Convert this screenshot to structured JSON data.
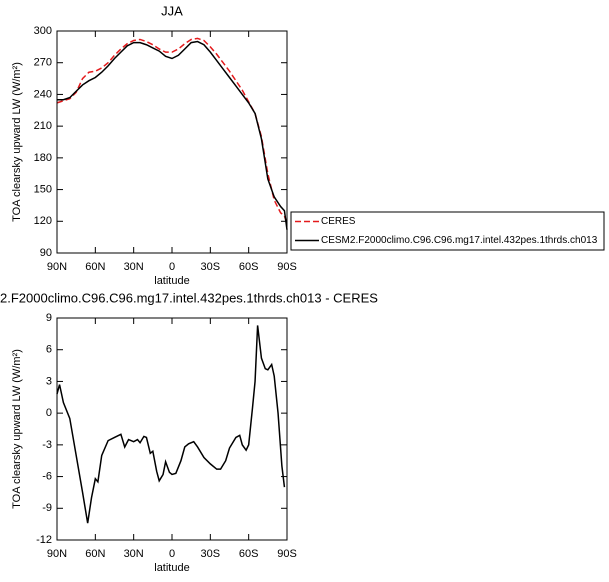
{
  "chart_data": [
    {
      "type": "line",
      "title": "JJA",
      "xlabel": "latitude",
      "ylabel": "TOA clearsky upward LW (W/m²)",
      "xlim": [
        90,
        -90
      ],
      "xticks": [
        {
          "value": 90,
          "label": "90N"
        },
        {
          "value": 60,
          "label": "60N"
        },
        {
          "value": 30,
          "label": "30N"
        },
        0,
        {
          "value": -30,
          "label": "30S"
        },
        {
          "value": -60,
          "label": "60S"
        },
        {
          "value": -90,
          "label": "90S"
        }
      ],
      "ylim": [
        90,
        300
      ],
      "yticks": [
        90,
        120,
        150,
        180,
        210,
        240,
        270,
        300
      ],
      "series": [
        {
          "name": "CERES",
          "color": "#e41a1c",
          "dash": true,
          "x": [
            90,
            85,
            80,
            75,
            70,
            65,
            60,
            55,
            50,
            45,
            40,
            35,
            30,
            25,
            20,
            15,
            10,
            5,
            0,
            -5,
            -10,
            -15,
            -20,
            -25,
            -30,
            -35,
            -40,
            -45,
            -50,
            -55,
            -60,
            -65,
            -70,
            -75,
            -80,
            -85,
            -88,
            -90
          ],
          "values": [
            232,
            234,
            236,
            242,
            255,
            261,
            262,
            265,
            270,
            277,
            283,
            288,
            291,
            292,
            290,
            287,
            283,
            280,
            280,
            283,
            288,
            292,
            293,
            291,
            285,
            278,
            270,
            262,
            253,
            244,
            233,
            222,
            200,
            165,
            140,
            128,
            125,
            118
          ]
        },
        {
          "name": "CESM2.F2000climo.C96.C96.mg17.intel.432pes.1thrds.ch013",
          "color": "#000000",
          "dash": false,
          "x": [
            90,
            85,
            80,
            75,
            70,
            65,
            60,
            55,
            50,
            45,
            40,
            35,
            30,
            25,
            20,
            15,
            10,
            5,
            0,
            -5,
            -10,
            -15,
            -20,
            -25,
            -30,
            -35,
            -40,
            -45,
            -50,
            -55,
            -60,
            -65,
            -70,
            -75,
            -80,
            -85,
            -88,
            -90
          ],
          "values": [
            235,
            235,
            237,
            243,
            249,
            253,
            256,
            261,
            267,
            274,
            280,
            286,
            289,
            289,
            287,
            284,
            281,
            276,
            274,
            277,
            283,
            289,
            290,
            287,
            280,
            272,
            264,
            256,
            248,
            240,
            232,
            222,
            198,
            160,
            143,
            134,
            130,
            112
          ]
        }
      ]
    },
    {
      "type": "line",
      "title": "2.F2000climo.C96.C96.mg17.intel.432pes.1thrds.ch013 - CERES",
      "xlabel": "latitude",
      "ylabel": "TOA clearsky upward LW (W/m²)",
      "xlim": [
        90,
        -90
      ],
      "xticks": [
        {
          "value": 90,
          "label": "90N"
        },
        {
          "value": 60,
          "label": "60N"
        },
        {
          "value": 30,
          "label": "30N"
        },
        0,
        {
          "value": -30,
          "label": "30S"
        },
        {
          "value": -60,
          "label": "60S"
        },
        {
          "value": -90,
          "label": "90S"
        }
      ],
      "ylim": [
        -12,
        9
      ],
      "yticks": [
        -12,
        -9,
        -6,
        -3,
        0,
        3,
        6,
        9
      ],
      "series": [
        {
          "color": "#000000",
          "dash": false,
          "x": [
            90,
            88,
            85,
            80,
            75,
            70,
            66,
            63,
            60,
            58,
            55,
            50,
            45,
            40,
            37,
            34,
            30,
            27,
            25,
            22,
            20,
            17,
            15,
            12,
            10,
            7,
            5,
            2,
            0,
            -3,
            -7,
            -10,
            -13,
            -17,
            -20,
            -25,
            -30,
            -35,
            -38,
            -42,
            -45,
            -50,
            -53,
            -55,
            -58,
            -60,
            -63,
            -65,
            -67,
            -70,
            -73,
            -75,
            -78,
            -80,
            -83,
            -86,
            -88
          ],
          "values": [
            1.8,
            2.7,
            1,
            -0.5,
            -4,
            -7.5,
            -10.4,
            -8,
            -6.2,
            -6.5,
            -4,
            -2.6,
            -2.3,
            -2,
            -3.2,
            -2.5,
            -2.7,
            -2.5,
            -2.8,
            -2.2,
            -2.3,
            -3.8,
            -3.6,
            -5.5,
            -6.4,
            -5.8,
            -4.6,
            -5.6,
            -5.8,
            -5.7,
            -4.5,
            -3.2,
            -2.9,
            -2.7,
            -3.2,
            -4.2,
            -4.8,
            -5.3,
            -5.3,
            -4.5,
            -3.3,
            -2.3,
            -2.1,
            -3.0,
            -3.5,
            -3.0,
            0.5,
            3,
            8.3,
            5.2,
            4.2,
            4.1,
            4.6,
            3.5,
            0,
            -5,
            -7
          ]
        }
      ]
    }
  ]
}
